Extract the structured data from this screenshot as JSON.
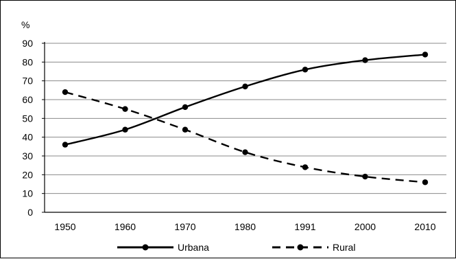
{
  "chart_data": {
    "type": "line",
    "ylabel": "%",
    "ylim": [
      0,
      90
    ],
    "yticks": [
      "0",
      "10",
      "20",
      "30",
      "40",
      "50",
      "60",
      "70",
      "80",
      "90"
    ],
    "categories": [
      "1950",
      "1960",
      "1970",
      "1980",
      "1991",
      "2000",
      "2010"
    ],
    "grid": "horizontal",
    "legend_position": "bottom",
    "series": [
      {
        "name": "Urbana",
        "values": [
          36,
          44,
          56,
          67,
          76,
          81,
          84
        ],
        "line_style": "solid",
        "color": "#000000"
      },
      {
        "name": "Rural",
        "values": [
          64,
          55,
          44,
          32,
          24,
          19,
          16
        ],
        "line_style": "dashed",
        "color": "#000000"
      }
    ]
  }
}
